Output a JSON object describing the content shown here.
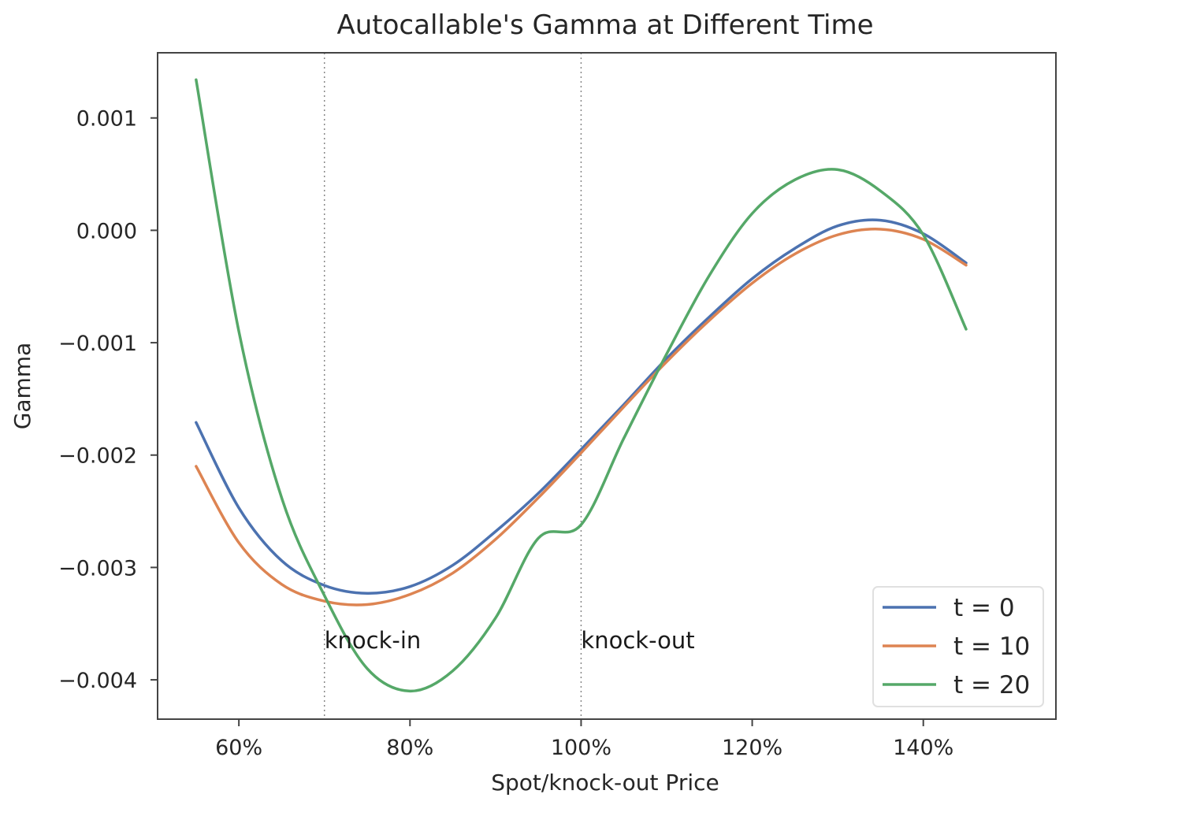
{
  "chart_data": {
    "type": "line",
    "title": "Autocallable's Gamma at Different Time",
    "xlabel": "Spot/knock-out Price",
    "ylabel": "Gamma",
    "xlim": [
      0.505,
      1.555
    ],
    "ylim": [
      -0.00435,
      0.00158
    ],
    "xticks": [
      {
        "value": 0.6,
        "label": "60%"
      },
      {
        "value": 0.8,
        "label": "80%"
      },
      {
        "value": 1.0,
        "label": "100%"
      },
      {
        "value": 1.2,
        "label": "120%"
      },
      {
        "value": 1.4,
        "label": "140%"
      }
    ],
    "yticks": [
      {
        "value": 0.001,
        "label": "0.001"
      },
      {
        "value": 0.0,
        "label": "0.000"
      },
      {
        "value": -0.001,
        "label": "−0.001"
      },
      {
        "value": -0.002,
        "label": "−0.002"
      },
      {
        "value": -0.003,
        "label": "−0.003"
      },
      {
        "value": -0.004,
        "label": "−0.004"
      }
    ],
    "grid": false,
    "legend_position": "bottom-right",
    "vlines": [
      {
        "x": 0.7,
        "label": "knock-in",
        "label_y": -0.00372
      },
      {
        "x": 1.0,
        "label": "knock-out",
        "label_y": -0.00372
      }
    ],
    "series": [
      {
        "name": "t = 0",
        "color": "#4c72b0",
        "x": [
          0.55,
          0.6,
          0.65,
          0.7,
          0.75,
          0.8,
          0.85,
          0.9,
          0.95,
          1.0,
          1.05,
          1.1,
          1.15,
          1.2,
          1.25,
          1.3,
          1.35,
          1.4,
          1.45
        ],
        "y": [
          -0.00171,
          -0.00247,
          -0.00294,
          -0.00316,
          -0.00323,
          -0.00317,
          -0.00298,
          -0.00268,
          -0.00234,
          -0.00195,
          -0.00155,
          -0.00114,
          -0.00077,
          -0.00043,
          -0.00016,
          4e-05,
          9e-05,
          -3e-05,
          -0.00029
        ]
      },
      {
        "name": "t = 10",
        "color": "#dd8452",
        "x": [
          0.55,
          0.6,
          0.65,
          0.7,
          0.75,
          0.8,
          0.85,
          0.9,
          0.95,
          1.0,
          1.05,
          1.1,
          1.15,
          1.2,
          1.25,
          1.3,
          1.35,
          1.4,
          1.45
        ],
        "y": [
          -0.0021,
          -0.00278,
          -0.00315,
          -0.0033,
          -0.00333,
          -0.00324,
          -0.00305,
          -0.00275,
          -0.00238,
          -0.00198,
          -0.00157,
          -0.00117,
          -0.0008,
          -0.00047,
          -0.00021,
          -4e-05,
          1e-05,
          -8e-05,
          -0.00031
        ]
      },
      {
        "name": "t = 20",
        "color": "#55a868",
        "x": [
          0.55,
          0.6,
          0.65,
          0.7,
          0.75,
          0.8,
          0.85,
          0.9,
          0.95,
          1.0,
          1.05,
          1.1,
          1.15,
          1.2,
          1.25,
          1.3,
          1.35,
          1.4,
          1.45
        ],
        "y": [
          0.00134,
          -0.0009,
          -0.00238,
          -0.00325,
          -0.0039,
          -0.0041,
          -0.00392,
          -0.00345,
          -0.00274,
          -0.00262,
          -0.00185,
          -0.0011,
          -0.0004,
          0.00015,
          0.00045,
          0.00054,
          0.00035,
          -4e-05,
          -0.00088
        ]
      }
    ]
  }
}
